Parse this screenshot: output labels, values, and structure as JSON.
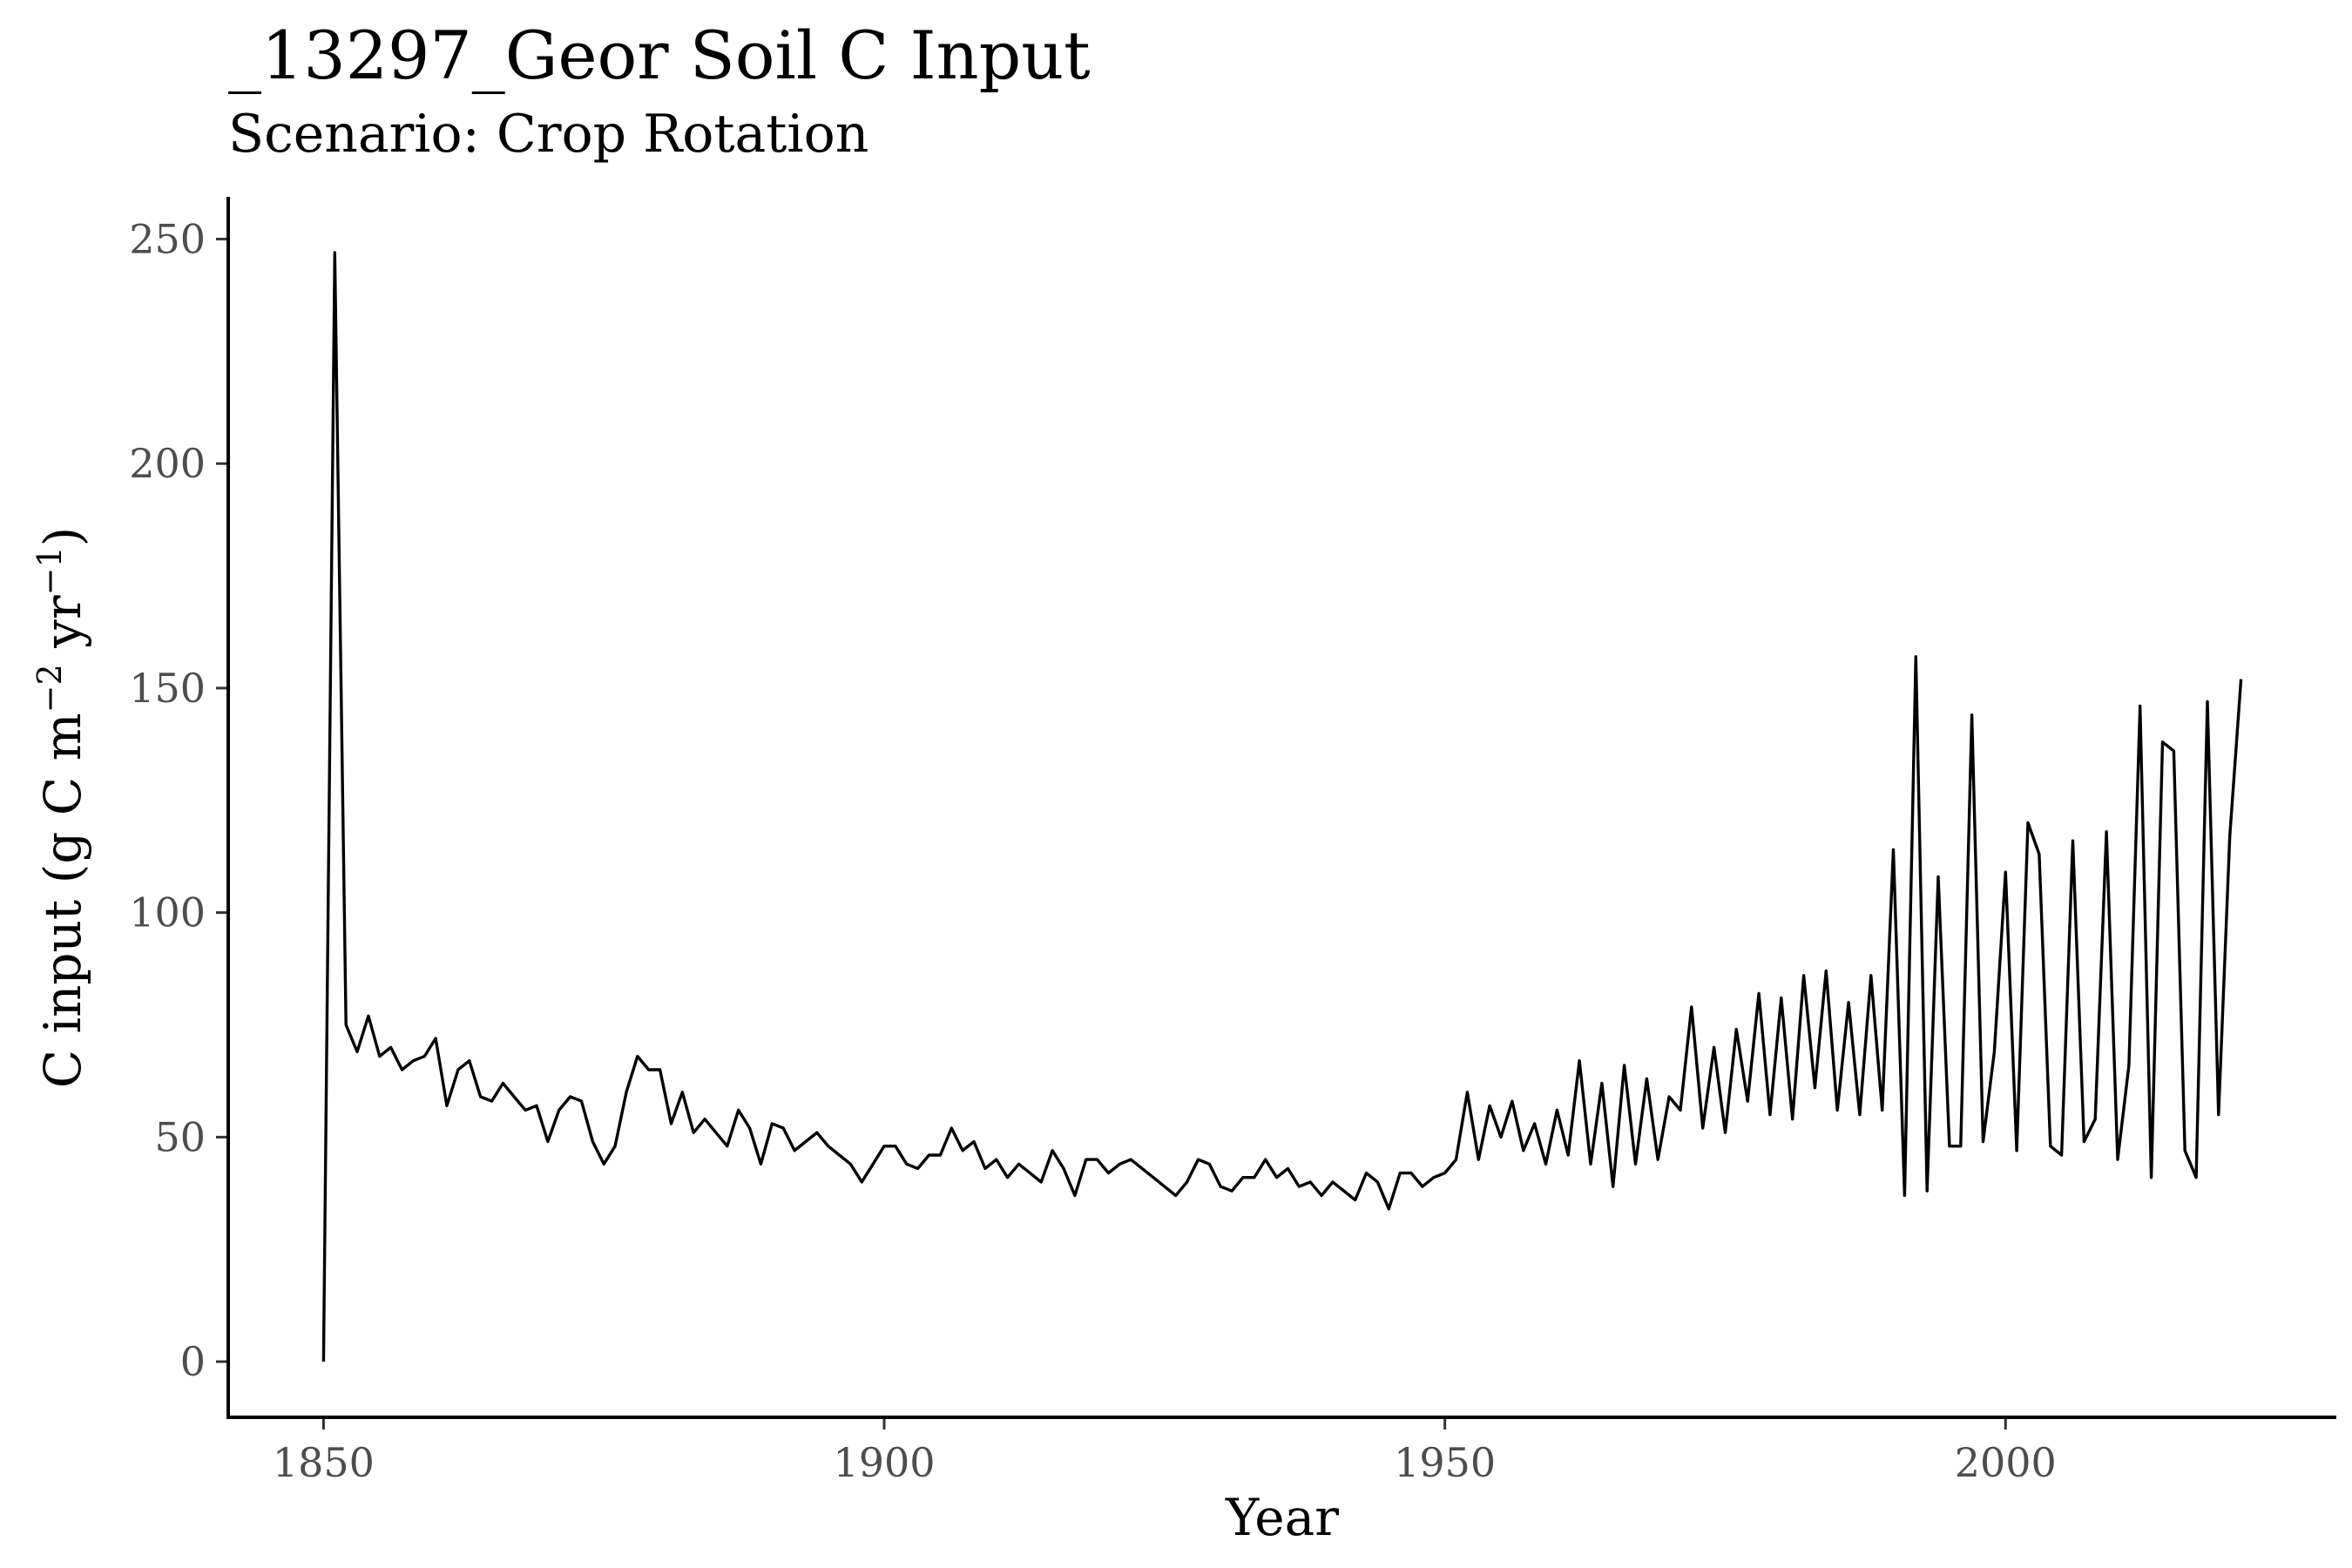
{
  "chart_data": {
    "type": "line",
    "title": "_13297_Geor Soil C Input",
    "subtitle": "Scenario: Crop Rotation",
    "xlabel": "Year",
    "ylabel": {
      "base": "C input (g C m",
      "sup1": "−2",
      "mid": " yr",
      "sup2": "−1",
      "end": ")"
    },
    "xlim": [
      1841.5,
      2029.5
    ],
    "ylim": [
      -12.4,
      259.4
    ],
    "x_ticks": [
      1850,
      1900,
      1950,
      2000
    ],
    "y_ticks": [
      0,
      50,
      100,
      150,
      200,
      250
    ],
    "grid": false,
    "line_color": "#000000",
    "series": [
      {
        "x": [
          1850,
          1851,
          1852,
          1853,
          1854,
          1855,
          1856,
          1857,
          1858,
          1859,
          1860,
          1861,
          1862,
          1863,
          1864,
          1865,
          1866,
          1867,
          1868,
          1869,
          1870,
          1871,
          1872,
          1873,
          1874,
          1875,
          1876,
          1877,
          1878,
          1879,
          1880,
          1881,
          1882,
          1883,
          1884,
          1885,
          1886,
          1887,
          1888,
          1889,
          1890,
          1891,
          1892,
          1893,
          1894,
          1895,
          1896,
          1897,
          1898,
          1899,
          1900,
          1901,
          1902,
          1903,
          1904,
          1905,
          1906,
          1907,
          1908,
          1909,
          1910,
          1911,
          1912,
          1913,
          1914,
          1915,
          1916,
          1917,
          1918,
          1919,
          1920,
          1921,
          1922,
          1923,
          1924,
          1925,
          1926,
          1927,
          1928,
          1929,
          1930,
          1931,
          1932,
          1933,
          1934,
          1935,
          1936,
          1937,
          1938,
          1939,
          1940,
          1941,
          1942,
          1943,
          1944,
          1945,
          1946,
          1947,
          1948,
          1949,
          1950,
          1951,
          1952,
          1953,
          1954,
          1955,
          1956,
          1957,
          1958,
          1959,
          1960,
          1961,
          1962,
          1963,
          1964,
          1965,
          1966,
          1967,
          1968,
          1969,
          1970,
          1971,
          1972,
          1973,
          1974,
          1975,
          1976,
          1977,
          1978,
          1979,
          1980,
          1981,
          1982,
          1983,
          1984,
          1985,
          1986,
          1987,
          1988,
          1989,
          1990,
          1991,
          1992,
          1993,
          1994,
          1995,
          1996,
          1997,
          1998,
          1999,
          2000,
          2001,
          2002,
          2003,
          2004,
          2005,
          2006,
          2007,
          2008,
          2009,
          2010,
          2011,
          2012,
          2013,
          2014,
          2015,
          2016,
          2017,
          2018,
          2019,
          2020,
          2021
        ],
        "values": [
          0,
          247,
          75,
          69,
          77,
          68,
          70,
          65,
          67,
          68,
          72,
          57,
          65,
          67,
          59,
          58,
          62,
          59,
          56,
          57,
          49,
          56,
          59,
          58,
          49,
          44,
          48,
          60,
          68,
          65,
          65,
          53,
          60,
          51,
          54,
          51,
          48,
          56,
          52,
          44,
          53,
          52,
          47,
          49,
          51,
          48,
          46,
          44,
          40,
          44,
          48,
          48,
          44,
          43,
          46,
          46,
          52,
          47,
          49,
          43,
          45,
          41,
          44,
          42,
          40,
          47,
          43,
          37,
          45,
          45,
          42,
          44,
          45,
          43,
          41,
          39,
          37,
          40,
          45,
          44,
          39,
          38,
          41,
          41,
          45,
          41,
          43,
          39,
          40,
          37,
          40,
          38,
          36,
          42,
          40,
          34,
          42,
          42,
          39,
          41,
          42,
          45,
          60,
          45,
          57,
          50,
          58,
          47,
          53,
          44,
          56,
          46,
          67,
          44,
          62,
          39,
          66,
          44,
          63,
          45,
          59,
          56,
          79,
          52,
          70,
          51,
          74,
          58,
          82,
          55,
          81,
          54,
          86,
          61,
          87,
          56,
          80,
          55,
          86,
          56,
          114,
          37,
          157,
          38,
          108,
          48,
          48,
          144,
          49,
          69,
          109,
          47,
          120,
          113,
          48,
          46,
          116,
          49,
          54,
          118,
          45,
          66,
          146,
          41,
          138,
          136,
          47,
          41,
          147,
          55,
          117,
          152
        ]
      }
    ]
  }
}
